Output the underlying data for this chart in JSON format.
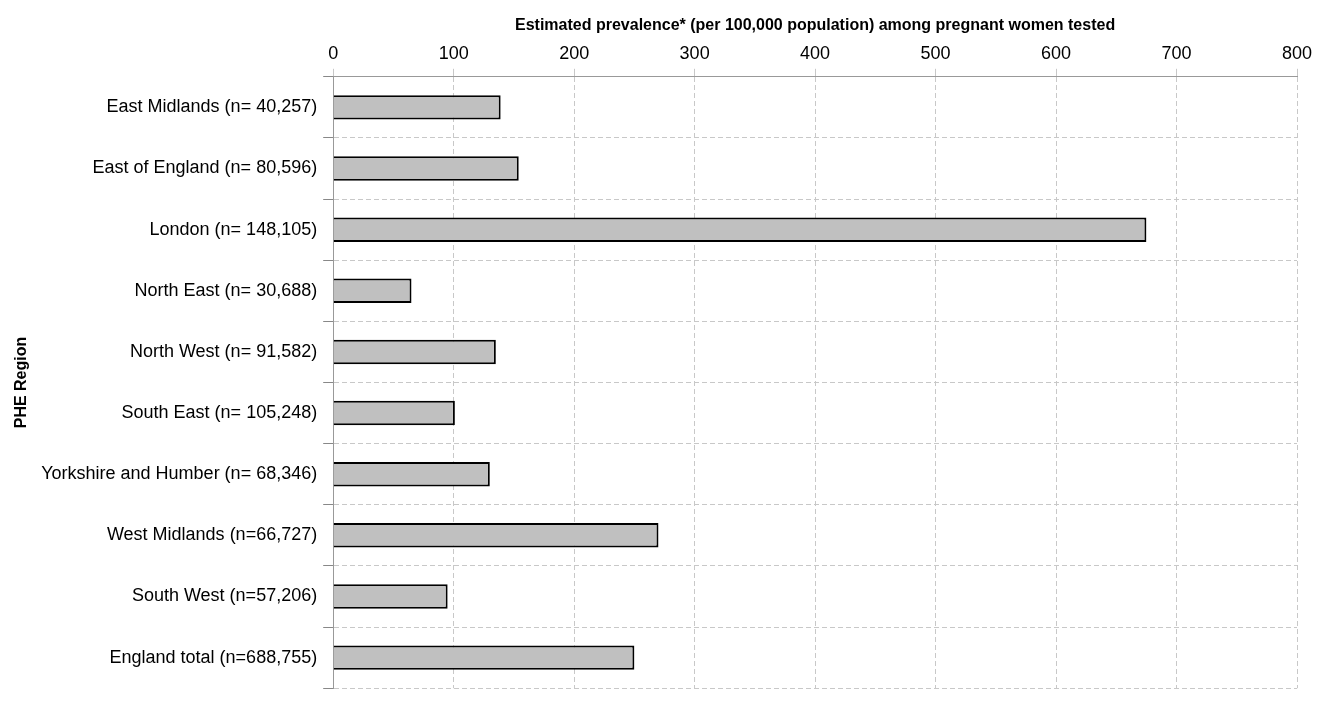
{
  "chart_data": {
    "type": "bar",
    "orientation": "horizontal",
    "xlabel": "Estimated prevalence* (per 100,000 population) among pregnant women tested",
    "ylabel": "PHE Region",
    "categories": [
      "East Midlands (n= 40,257)",
      "East of England (n= 80,596)",
      "London (n= 148,105)",
      "North East (n= 30,688)",
      "North West (n= 91,582)",
      "South East (n= 105,248)",
      "Yorkshire and Humber (n= 68,346)",
      "West Midlands (n=66,727)",
      "South West (n=57,206)",
      "England total (n=688,755)"
    ],
    "values": [
      139,
      154,
      675,
      65,
      135,
      101,
      130,
      270,
      95,
      250
    ],
    "color": "#c0c0c0",
    "xlim": [
      0,
      800
    ],
    "xticks": [
      0,
      100,
      200,
      300,
      400,
      500,
      600,
      700,
      800
    ],
    "grid": true,
    "legend": false
  }
}
